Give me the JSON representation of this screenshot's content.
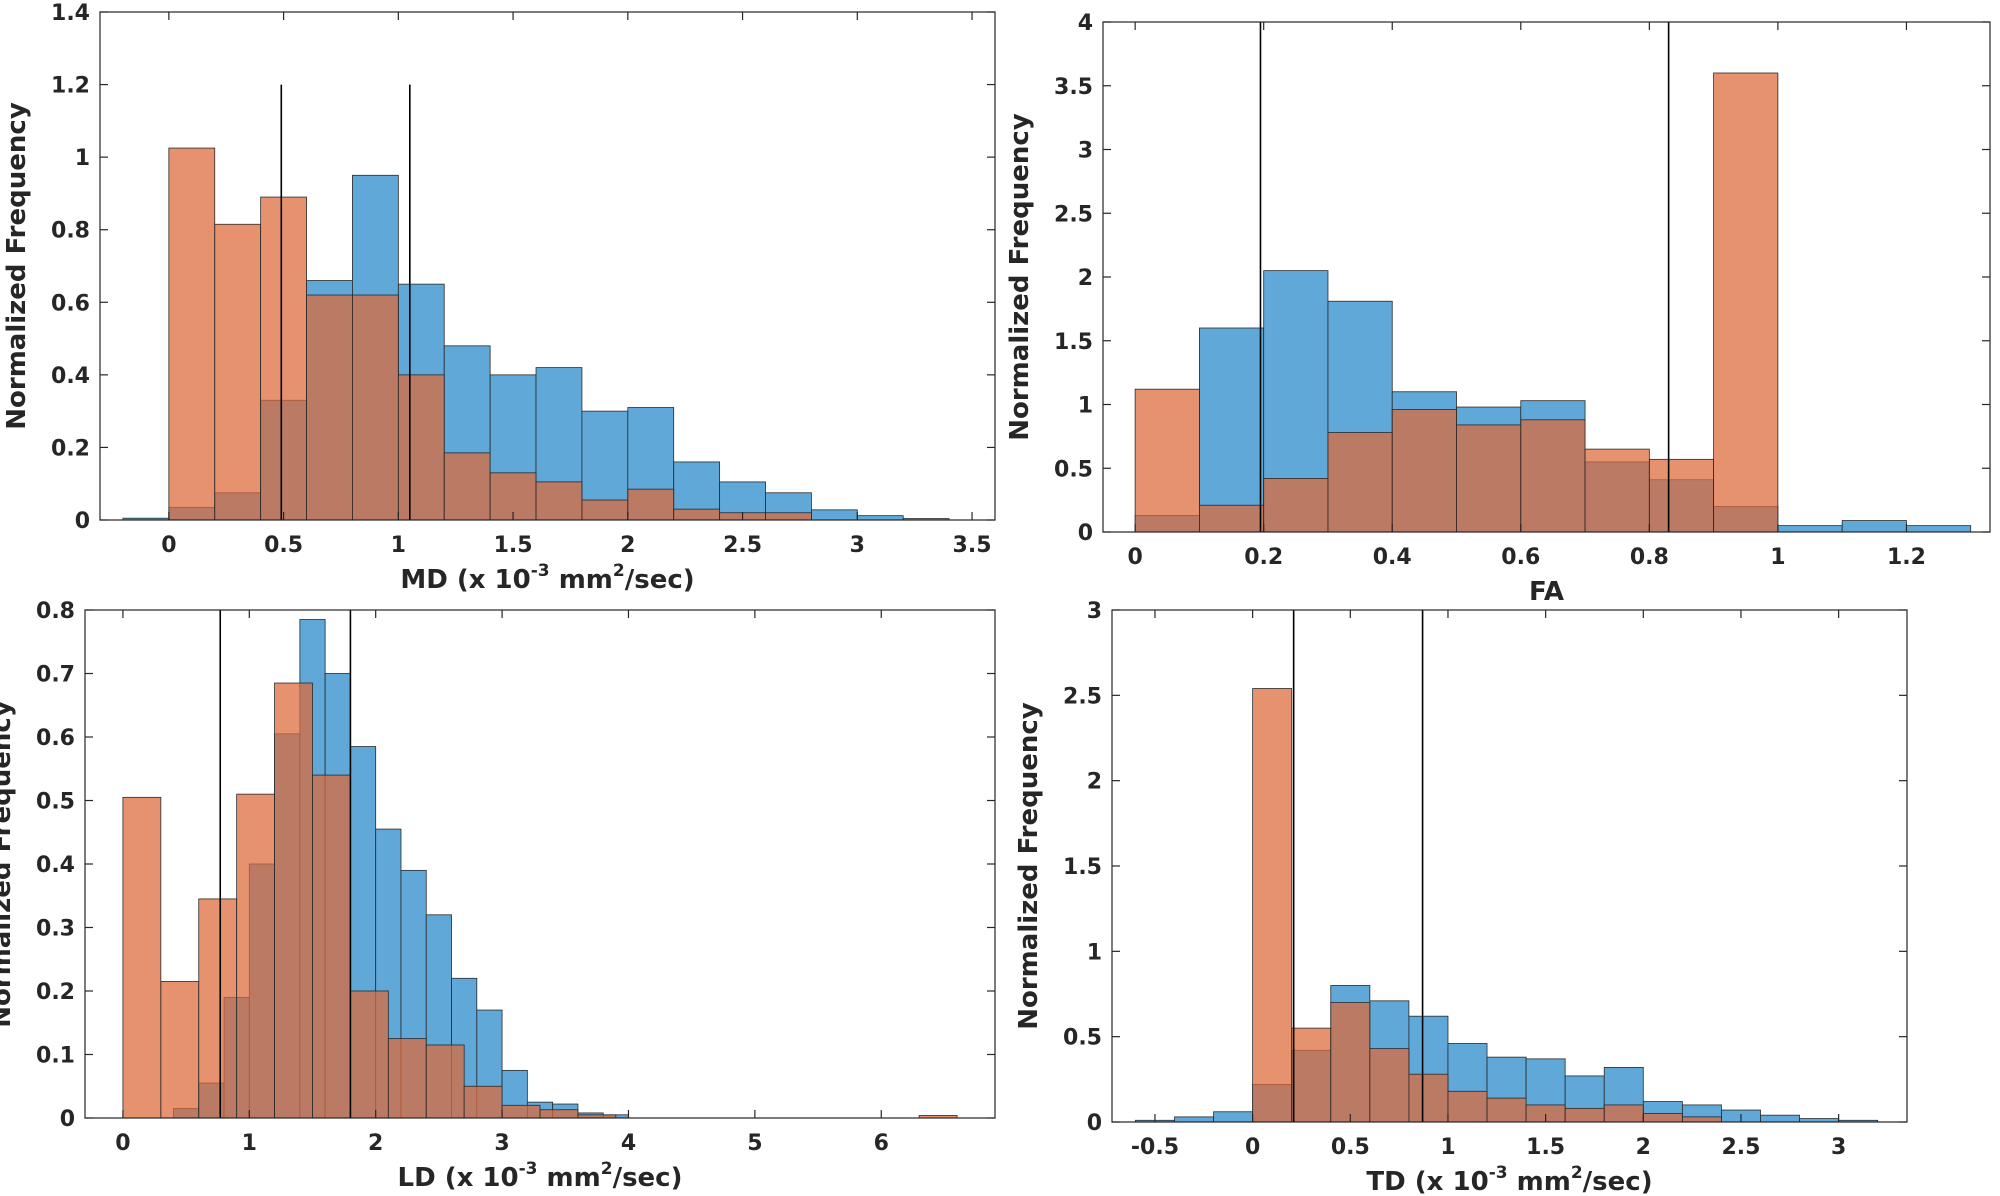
{
  "colors": {
    "series_a": "#5fa8d8",
    "series_b": "#de6838",
    "overlap": "#a86f60",
    "refline": "#000000"
  },
  "chart_data": [
    {
      "id": "md",
      "type": "bar",
      "ylabel": "Normalized Frequency",
      "xlabel": {
        "prefix": "MD (x 10",
        "sup1": "-3",
        "mid": " mm",
        "sup2": "2",
        "suffix": "/sec)"
      },
      "xlim": [
        -0.3,
        3.6
      ],
      "ylim": [
        0,
        1.4
      ],
      "xticks": [
        0,
        0.5,
        1,
        1.5,
        2,
        2.5,
        3,
        3.5
      ],
      "xtick_labels": [
        "0",
        "0.5",
        "1",
        "1.5",
        "2",
        "2.5",
        "3",
        "3.5"
      ],
      "yticks": [
        0,
        0.2,
        0.4,
        0.6,
        0.8,
        1,
        1.2,
        1.4
      ],
      "ytick_labels": [
        "0",
        "0.2",
        "0.4",
        "0.6",
        "0.8",
        "1",
        "1.2",
        "1.4"
      ],
      "series": [
        {
          "name": "blue",
          "edges": [
            -0.2,
            0,
            0.2,
            0.4,
            0.6,
            0.8,
            1,
            1.2,
            1.4,
            1.6,
            1.8,
            2,
            2.2,
            2.4,
            2.6,
            2.8,
            3,
            3.2,
            3.4
          ],
          "values": [
            0.005,
            0.035,
            0.075,
            0.33,
            0.66,
            0.95,
            0.65,
            0.48,
            0.4,
            0.42,
            0.3,
            0.31,
            0.16,
            0.105,
            0.075,
            0.028,
            0.012,
            0.004
          ]
        },
        {
          "name": "orange",
          "edges": [
            0,
            0.2,
            0.4,
            0.6,
            0.8,
            1,
            1.2,
            1.4,
            1.6,
            1.8,
            2,
            2.2,
            2.4,
            2.6,
            2.8
          ],
          "values": [
            1.025,
            0.815,
            0.89,
            0.62,
            0.62,
            0.4,
            0.185,
            0.13,
            0.105,
            0.055,
            0.085,
            0.03,
            0.02,
            0.02
          ]
        }
      ],
      "vlines": [
        0.49,
        1.05
      ],
      "vline_top": 1.2
    },
    {
      "id": "fa",
      "type": "bar",
      "ylabel": "Normalized Frequency",
      "xlabel": {
        "prefix": "FA",
        "sup1": "",
        "mid": "",
        "sup2": "",
        "suffix": ""
      },
      "xlim": [
        -0.05,
        1.33
      ],
      "ylim": [
        0,
        4
      ],
      "xticks": [
        0,
        0.2,
        0.4,
        0.6,
        0.8,
        1,
        1.2
      ],
      "xtick_labels": [
        "0",
        "0.2",
        "0.4",
        "0.6",
        "0.8",
        "1",
        "1.2"
      ],
      "yticks": [
        0,
        0.5,
        1,
        1.5,
        2,
        2.5,
        3,
        3.5,
        4
      ],
      "ytick_labels": [
        "0",
        "0.5",
        "1",
        "1.5",
        "2",
        "2.5",
        "3",
        "3.5",
        "4"
      ],
      "series": [
        {
          "name": "blue",
          "edges": [
            0,
            0.1,
            0.2,
            0.3,
            0.4,
            0.5,
            0.6,
            0.7,
            0.8,
            0.9,
            1.0,
            1.1,
            1.2,
            1.3
          ],
          "values": [
            0.13,
            1.6,
            2.05,
            1.81,
            1.1,
            0.98,
            1.03,
            0.55,
            0.41,
            0.2,
            0.05,
            0.09,
            0.05
          ]
        },
        {
          "name": "orange",
          "edges": [
            0,
            0.1,
            0.2,
            0.3,
            0.4,
            0.5,
            0.6,
            0.7,
            0.8,
            0.9,
            1.0
          ],
          "values": [
            1.12,
            0.21,
            0.42,
            0.78,
            0.96,
            0.84,
            0.88,
            0.65,
            0.57,
            3.6
          ]
        }
      ],
      "vlines": [
        0.195,
        0.83
      ],
      "vline_top": 4
    },
    {
      "id": "ld",
      "type": "bar",
      "ylabel": "Normalized Frequency",
      "xlabel": {
        "prefix": "LD (x 10",
        "sup1": "-3",
        "mid": " mm",
        "sup2": "2",
        "suffix": "/sec)"
      },
      "xlim": [
        -0.3,
        6.9
      ],
      "ylim": [
        0,
        0.8
      ],
      "xticks": [
        0,
        1,
        2,
        3,
        4,
        5,
        6
      ],
      "xtick_labels": [
        "0",
        "1",
        "2",
        "3",
        "4",
        "5",
        "6"
      ],
      "yticks": [
        0,
        0.1,
        0.2,
        0.3,
        0.4,
        0.5,
        0.6,
        0.7,
        0.8
      ],
      "ytick_labels": [
        "0",
        "0.1",
        "0.2",
        "0.3",
        "0.4",
        "0.5",
        "0.6",
        "0.7",
        "0.8"
      ],
      "series": [
        {
          "name": "blue",
          "edges": [
            0.4,
            0.6,
            0.8,
            1.0,
            1.2,
            1.4,
            1.6,
            1.8,
            2.0,
            2.2,
            2.4,
            2.6,
            2.8,
            3.0,
            3.2,
            3.4,
            3.6,
            3.8,
            4.0
          ],
          "values": [
            0.015,
            0.055,
            0.19,
            0.4,
            0.605,
            0.785,
            0.7,
            0.585,
            0.455,
            0.39,
            0.32,
            0.22,
            0.17,
            0.075,
            0.025,
            0.022,
            0.008,
            0.005
          ]
        },
        {
          "name": "orange",
          "edges": [
            0,
            0.3,
            0.6,
            0.9,
            1.2,
            1.5,
            1.8,
            2.1,
            2.4,
            2.7,
            3.0,
            3.3,
            3.6,
            3.9
          ],
          "values": [
            0.505,
            0.215,
            0.345,
            0.51,
            0.685,
            0.54,
            0.2,
            0.125,
            0.115,
            0.05,
            0.02,
            0.013,
            0.005
          ]
        },
        {
          "name": "orange",
          "edges": [
            6.3,
            6.6
          ],
          "values": [
            0.004
          ]
        }
      ],
      "vlines": [
        0.77,
        1.8
      ],
      "vline_top": 0.8
    },
    {
      "id": "td",
      "type": "bar",
      "ylabel": "Normalized Frequency",
      "xlabel": {
        "prefix": "TD (x 10",
        "sup1": "-3",
        "mid": " mm",
        "sup2": "2",
        "suffix": "/sec)"
      },
      "xlim": [
        -0.72,
        3.35
      ],
      "ylim": [
        0,
        3
      ],
      "xticks": [
        -0.5,
        0,
        0.5,
        1,
        1.5,
        2,
        2.5,
        3
      ],
      "xtick_labels": [
        "-0.5",
        "0",
        "0.5",
        "1",
        "1.5",
        "2",
        "2.5",
        "3"
      ],
      "yticks": [
        0,
        0.5,
        1,
        1.5,
        2,
        2.5,
        3
      ],
      "ytick_labels": [
        "0",
        "0.5",
        "1",
        "1.5",
        "2",
        "2.5",
        "3"
      ],
      "series": [
        {
          "name": "blue",
          "edges": [
            -0.6,
            -0.4,
            -0.2,
            0,
            0.2,
            0.4,
            0.6,
            0.8,
            1.0,
            1.2,
            1.4,
            1.6,
            1.8,
            2.0,
            2.2,
            2.4,
            2.6,
            2.8,
            3.0,
            3.2
          ],
          "values": [
            0.01,
            0.03,
            0.06,
            0.22,
            0.42,
            0.8,
            0.71,
            0.62,
            0.46,
            0.38,
            0.37,
            0.27,
            0.32,
            0.12,
            0.1,
            0.07,
            0.04,
            0.02,
            0.01
          ]
        },
        {
          "name": "orange",
          "edges": [
            0,
            0.2,
            0.4,
            0.6,
            0.8,
            1.0,
            1.2,
            1.4,
            1.6,
            1.8,
            2.0,
            2.2,
            2.4
          ],
          "values": [
            2.54,
            0.55,
            0.7,
            0.43,
            0.28,
            0.18,
            0.14,
            0.1,
            0.08,
            0.1,
            0.05,
            0.03
          ]
        }
      ],
      "vlines": [
        0.21,
        0.87
      ],
      "vline_top": 3
    }
  ]
}
